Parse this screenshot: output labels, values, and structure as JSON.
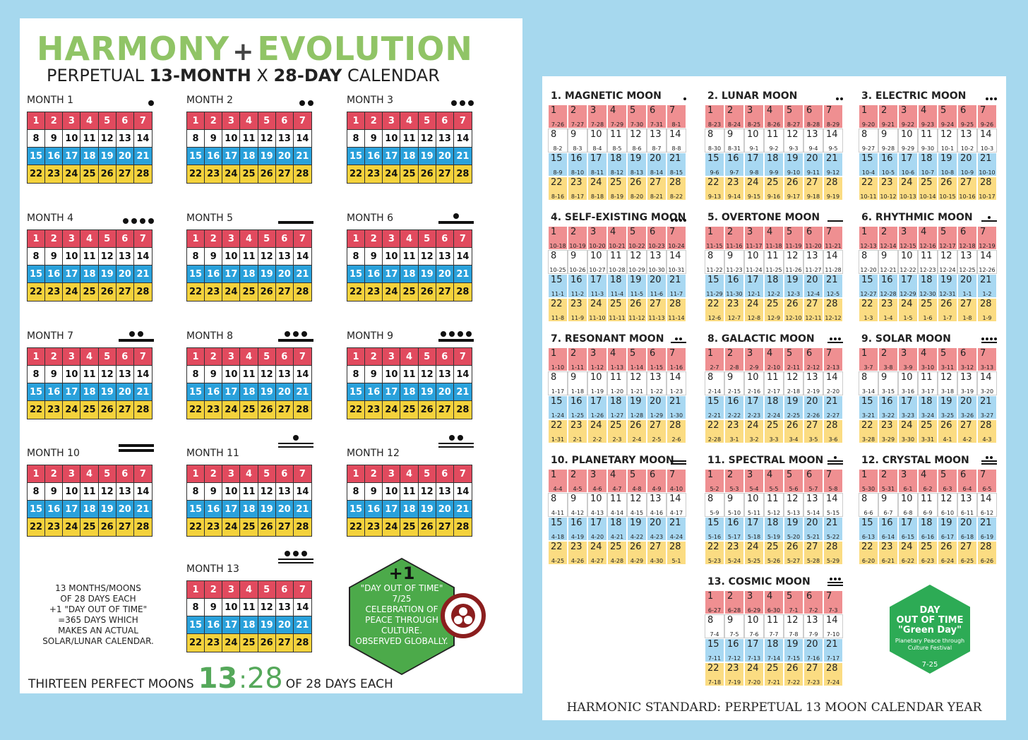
{
  "left": {
    "title_a": "HARMONY",
    "title_plus": "+",
    "title_b": "EVOLUTION",
    "subtitle_1": "PERPETUAL ",
    "subtitle_2": "13-MONTH",
    "subtitle_3": " X ",
    "subtitle_4": "28-DAY",
    "subtitle_5": " CALENDAR",
    "months": [
      {
        "label": "MONTH 1",
        "dots": 1,
        "bars": 0
      },
      {
        "label": "MONTH 2",
        "dots": 2,
        "bars": 0
      },
      {
        "label": "MONTH 3",
        "dots": 3,
        "bars": 0
      },
      {
        "label": "MONTH 4",
        "dots": 4,
        "bars": 0
      },
      {
        "label": "MONTH 5",
        "dots": 0,
        "bars": 1
      },
      {
        "label": "MONTH 6",
        "dots": 1,
        "bars": 1
      },
      {
        "label": "MONTH 7",
        "dots": 2,
        "bars": 1
      },
      {
        "label": "MONTH 8",
        "dots": 3,
        "bars": 1
      },
      {
        "label": "MONTH 9",
        "dots": 4,
        "bars": 1
      },
      {
        "label": "MONTH 10",
        "dots": 0,
        "bars": 2
      },
      {
        "label": "MONTH 11",
        "dots": 1,
        "bars": 2
      },
      {
        "label": "MONTH 12",
        "dots": 2,
        "bars": 2
      },
      {
        "label": "MONTH 13",
        "dots": 3,
        "bars": 2
      }
    ],
    "note_lines": [
      "13 MONTHS/MOONS",
      "OF 28 DAYS EACH",
      "+1 \"DAY OUT OF TIME\"",
      "=365 DAYS WHICH",
      "MAKES AN ACTUAL",
      "SOLAR/LUNAR CALENDAR."
    ],
    "hex_big": "+1",
    "hex_lines": [
      "\"DAY OUT OF TIME\"",
      "7/25",
      "CELEBRATION OF",
      "PEACE THROUGH",
      "CULTURE.",
      "OBSERVED GLOBALLY."
    ],
    "footer_a": "THIRTEEN PERFECT MOONS",
    "footer_13": "13",
    "footer_colon": ":",
    "footer_28": "28",
    "footer_b": "OF 28 DAYS EACH"
  },
  "right": {
    "moons": [
      {
        "title": "1. MAGNETIC MOON",
        "dots": 1,
        "bars": 0,
        "start_month": 7,
        "start_day": 26
      },
      {
        "title": "2. LUNAR MOON",
        "dots": 2,
        "bars": 0,
        "start_month": 8,
        "start_day": 23
      },
      {
        "title": "3. ELECTRIC MOON",
        "dots": 3,
        "bars": 0,
        "start_month": 9,
        "start_day": 20
      },
      {
        "title": "4. SELF-EXISTING MOON",
        "dots": 4,
        "bars": 0,
        "start_month": 10,
        "start_day": 18
      },
      {
        "title": "5. OVERTONE MOON",
        "dots": 0,
        "bars": 1,
        "start_month": 11,
        "start_day": 15
      },
      {
        "title": "6. RHYTHMIC MOON",
        "dots": 1,
        "bars": 1,
        "start_month": 12,
        "start_day": 13
      },
      {
        "title": "7. RESONANT MOON",
        "dots": 2,
        "bars": 1,
        "start_month": 1,
        "start_day": 10
      },
      {
        "title": "8. GALACTIC MOON",
        "dots": 3,
        "bars": 1,
        "start_month": 2,
        "start_day": 7
      },
      {
        "title": "9. SOLAR MOON",
        "dots": 4,
        "bars": 1,
        "start_month": 3,
        "start_day": 7
      },
      {
        "title": "10. PLANETARY MOON",
        "dots": 0,
        "bars": 2,
        "start_month": 4,
        "start_day": 4
      },
      {
        "title": "11. SPECTRAL MOON",
        "dots": 1,
        "bars": 2,
        "start_month": 5,
        "start_day": 2
      },
      {
        "title": "12. CRYSTAL MOON",
        "dots": 2,
        "bars": 2,
        "start_month": 5,
        "start_day": 30
      },
      {
        "title": "13. COSMIC MOON",
        "dots": 3,
        "bars": 2,
        "start_month": 6,
        "start_day": 27
      }
    ],
    "hex_lines": [
      "DAY",
      "OUT OF TIME",
      "\"Green Day\""
    ],
    "hex_small": "Planetary Peace through Culture Festival",
    "hex_date": "7-25",
    "footer": "HARMONIC STANDARD: PERPETUAL 13 MOON CALENDAR YEAR"
  }
}
